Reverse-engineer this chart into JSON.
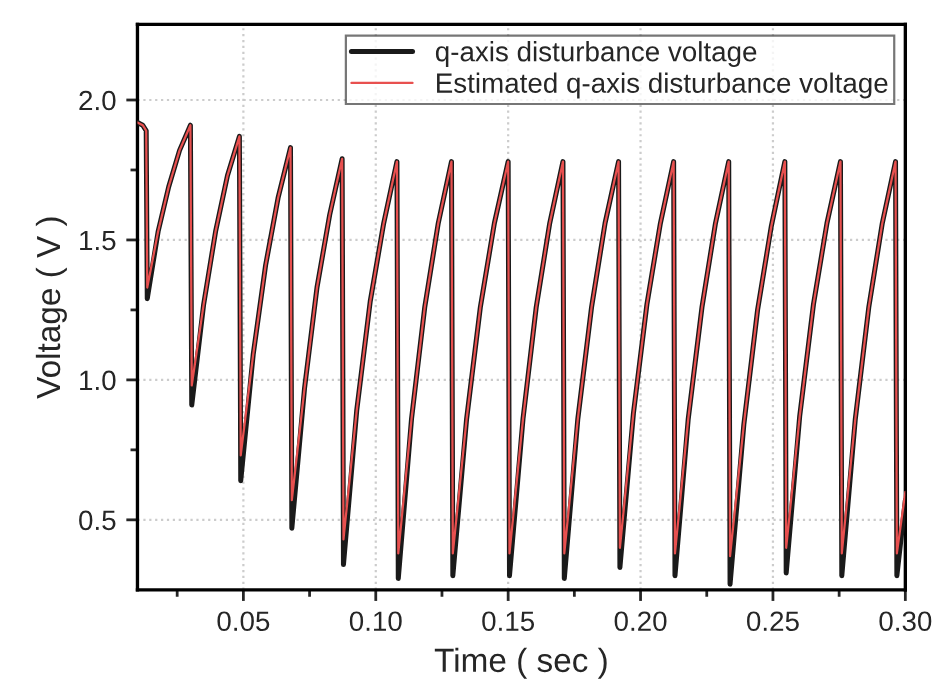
{
  "chart_data": {
    "type": "line",
    "xlabel": "Time ( sec )",
    "ylabel": "Voltage ( V )",
    "xlim": [
      0.01,
      0.3
    ],
    "ylim": [
      0.25,
      2.27
    ],
    "xticks": [
      {
        "value": 0.025,
        "label": null
      },
      {
        "value": 0.05,
        "label": "0.05"
      },
      {
        "value": 0.075,
        "label": null
      },
      {
        "value": 0.1,
        "label": "0.10"
      },
      {
        "value": 0.125,
        "label": null
      },
      {
        "value": 0.15,
        "label": "0.15"
      },
      {
        "value": 0.175,
        "label": null
      },
      {
        "value": 0.2,
        "label": "0.20"
      },
      {
        "value": 0.225,
        "label": null
      },
      {
        "value": 0.25,
        "label": "0.25"
      },
      {
        "value": 0.275,
        "label": null
      },
      {
        "value": 0.3,
        "label": "0.30"
      }
    ],
    "yticks": [
      {
        "value": 0.5,
        "label": "0.5"
      },
      {
        "value": 0.75,
        "label": null
      },
      {
        "value": 1.0,
        "label": "1.0"
      },
      {
        "value": 1.25,
        "label": null
      },
      {
        "value": 1.5,
        "label": "1.5"
      },
      {
        "value": 1.75,
        "label": null
      },
      {
        "value": 2.0,
        "label": "2.0"
      }
    ],
    "grid": true,
    "legend": "top right",
    "line_style": "solid",
    "marker": "none",
    "series": [
      {
        "name": "q-axis disturbance voltage",
        "color": "#1a1a1a",
        "x": [
          0.01,
          0.012,
          0.0133,
          0.0137,
          0.0178,
          0.0218,
          0.0259,
          0.03,
          0.0305,
          0.035,
          0.0395,
          0.044,
          0.0485,
          0.049,
          0.0537,
          0.0584,
          0.0631,
          0.0678,
          0.0683,
          0.0731,
          0.0778,
          0.0826,
          0.0873,
          0.0878,
          0.0928,
          0.0979,
          0.103,
          0.108,
          0.1085,
          0.1135,
          0.1185,
          0.1236,
          0.1286,
          0.1291,
          0.1343,
          0.1395,
          0.1448,
          0.15,
          0.1505,
          0.1556,
          0.1606,
          0.1657,
          0.1707,
          0.1712,
          0.1763,
          0.1815,
          0.1866,
          0.1917,
          0.1922,
          0.1973,
          0.2024,
          0.2075,
          0.2125,
          0.213,
          0.218,
          0.2232,
          0.2283,
          0.2333,
          0.2338,
          0.239,
          0.2442,
          0.2494,
          0.2545,
          0.255,
          0.2601,
          0.2653,
          0.2704,
          0.2755,
          0.276,
          0.2811,
          0.2862,
          0.2913,
          0.2963,
          0.2968,
          0.3
        ],
        "values": [
          1.92,
          1.91,
          1.89,
          1.29,
          1.53,
          1.69,
          1.82,
          1.91,
          0.91,
          1.27,
          1.53,
          1.73,
          1.87,
          0.64,
          1.09,
          1.41,
          1.65,
          1.83,
          0.47,
          0.97,
          1.33,
          1.59,
          1.79,
          0.34,
          0.89,
          1.28,
          1.56,
          1.78,
          0.29,
          0.86,
          1.26,
          1.56,
          1.78,
          0.3,
          0.86,
          1.26,
          1.56,
          1.78,
          0.3,
          0.86,
          1.26,
          1.56,
          1.78,
          0.29,
          0.86,
          1.26,
          1.56,
          1.78,
          0.33,
          0.88,
          1.27,
          1.56,
          1.78,
          0.3,
          0.86,
          1.26,
          1.56,
          1.78,
          0.27,
          0.84,
          1.25,
          1.55,
          1.78,
          0.31,
          0.87,
          1.27,
          1.56,
          1.78,
          0.3,
          0.86,
          1.26,
          1.56,
          1.78,
          0.3,
          0.57
        ]
      },
      {
        "name": "Estimated q-axis disturbance voltage",
        "color": "#e8504f",
        "x": [
          0.01,
          0.012,
          0.0133,
          0.0137,
          0.0178,
          0.0218,
          0.0259,
          0.03,
          0.0305,
          0.035,
          0.0395,
          0.044,
          0.0485,
          0.049,
          0.0537,
          0.0584,
          0.0631,
          0.0678,
          0.0683,
          0.0731,
          0.0778,
          0.0826,
          0.0873,
          0.0878,
          0.0928,
          0.0979,
          0.103,
          0.108,
          0.1085,
          0.1135,
          0.1185,
          0.1236,
          0.1286,
          0.1291,
          0.1343,
          0.1395,
          0.1448,
          0.15,
          0.1505,
          0.1556,
          0.1606,
          0.1657,
          0.1707,
          0.1712,
          0.1763,
          0.1815,
          0.1866,
          0.1917,
          0.1922,
          0.1973,
          0.2024,
          0.2075,
          0.2125,
          0.213,
          0.218,
          0.2232,
          0.2283,
          0.2333,
          0.2338,
          0.239,
          0.2442,
          0.2494,
          0.2545,
          0.255,
          0.2601,
          0.2653,
          0.2704,
          0.2755,
          0.276,
          0.2811,
          0.2862,
          0.2913,
          0.2963,
          0.2968,
          0.3
        ],
        "values": [
          1.92,
          1.91,
          1.89,
          1.33,
          1.53,
          1.69,
          1.82,
          1.91,
          0.98,
          1.27,
          1.53,
          1.73,
          1.87,
          0.73,
          1.09,
          1.41,
          1.65,
          1.83,
          0.57,
          0.97,
          1.33,
          1.59,
          1.79,
          0.43,
          0.89,
          1.28,
          1.56,
          1.78,
          0.38,
          0.86,
          1.26,
          1.56,
          1.78,
          0.38,
          0.86,
          1.26,
          1.56,
          1.78,
          0.38,
          0.86,
          1.26,
          1.56,
          1.78,
          0.38,
          0.86,
          1.26,
          1.56,
          1.78,
          0.4,
          0.88,
          1.27,
          1.56,
          1.78,
          0.38,
          0.86,
          1.26,
          1.56,
          1.78,
          0.37,
          0.84,
          1.25,
          1.55,
          1.78,
          0.4,
          0.87,
          1.27,
          1.56,
          1.78,
          0.38,
          0.86,
          1.26,
          1.56,
          1.78,
          0.38,
          0.6
        ]
      }
    ]
  }
}
